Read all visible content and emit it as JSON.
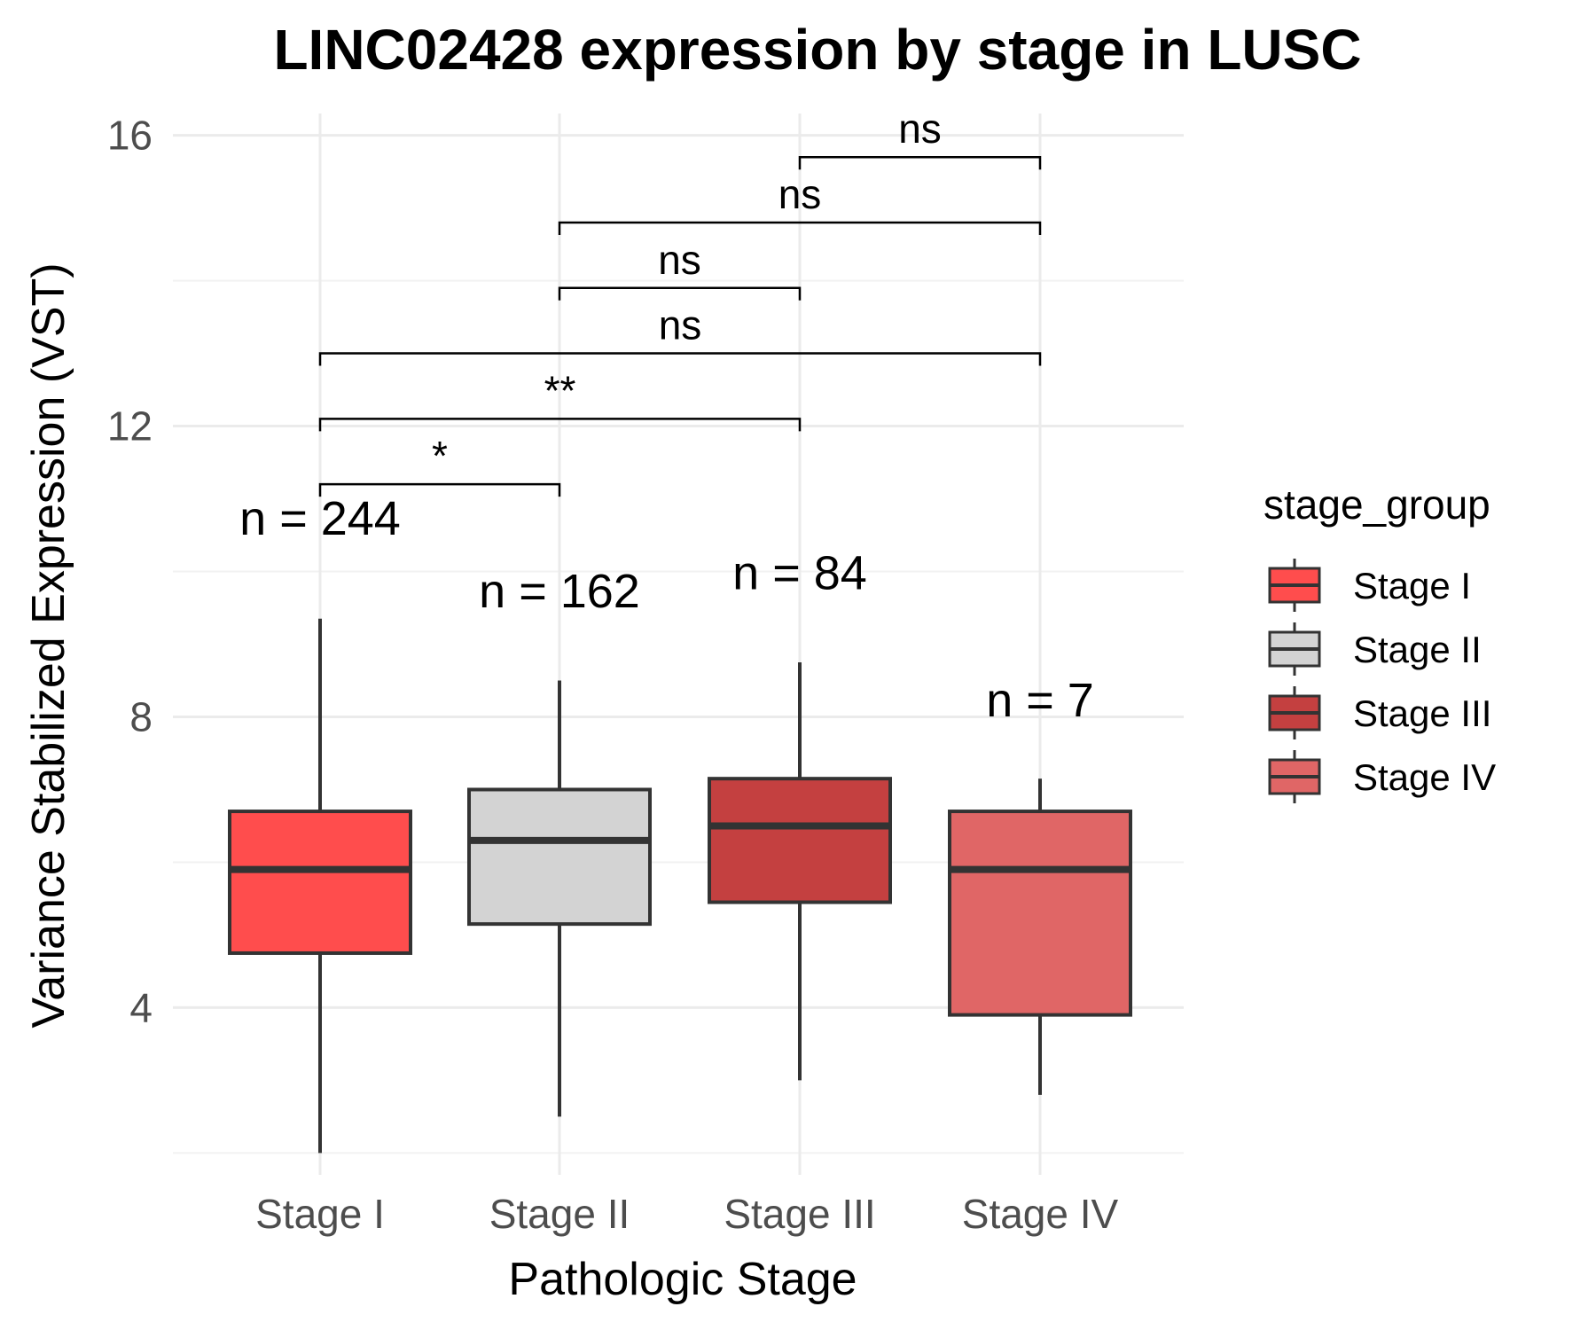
{
  "chart_data": {
    "type": "boxplot",
    "title": "LINC02428 expression by stage in LUSC",
    "xlabel": "Pathologic Stage",
    "ylabel": "Variance Stabilized Expression (VST)",
    "ylim": [
      1.7,
      16.3
    ],
    "yticks": [
      4,
      8,
      12,
      16
    ],
    "yminor": [
      2,
      6,
      10,
      14
    ],
    "grid": true,
    "legend": {
      "title": "stage_group",
      "position": "right",
      "entries": [
        "Stage I",
        "Stage II",
        "Stage III",
        "Stage IV"
      ]
    },
    "categories": [
      "Stage I",
      "Stage II",
      "Stage III",
      "Stage IV"
    ],
    "colors": [
      "#ff4d4d",
      "#d3d3d3",
      "#c44040",
      "#e06666"
    ],
    "boxes": [
      {
        "name": "Stage I",
        "min": 2.0,
        "q1": 4.75,
        "median": 5.9,
        "q3": 6.7,
        "max": 9.35,
        "n_label": "n = 244"
      },
      {
        "name": "Stage II",
        "min": 2.5,
        "q1": 5.15,
        "median": 6.3,
        "q3": 7.0,
        "max": 8.5,
        "n_label": "n = 162"
      },
      {
        "name": "Stage III",
        "min": 3.0,
        "q1": 5.45,
        "median": 6.5,
        "q3": 7.15,
        "max": 8.75,
        "n_label": "n = 84"
      },
      {
        "name": "Stage IV",
        "min": 2.8,
        "q1": 3.9,
        "median": 5.9,
        "q3": 6.7,
        "max": 7.15,
        "n_label": "n = 7"
      }
    ],
    "n_label_y": [
      10.75,
      9.75,
      10.0,
      8.25
    ],
    "comparisons": [
      {
        "from": "Stage I",
        "to": "Stage II",
        "y": 11.2,
        "label": "*"
      },
      {
        "from": "Stage I",
        "to": "Stage III",
        "y": 12.1,
        "label": "**"
      },
      {
        "from": "Stage I",
        "to": "Stage IV",
        "y": 13.0,
        "label": "ns"
      },
      {
        "from": "Stage II",
        "to": "Stage III",
        "y": 13.9,
        "label": "ns"
      },
      {
        "from": "Stage II",
        "to": "Stage IV",
        "y": 14.8,
        "label": "ns"
      },
      {
        "from": "Stage III",
        "to": "Stage IV",
        "y": 15.7,
        "label": "ns"
      }
    ]
  }
}
